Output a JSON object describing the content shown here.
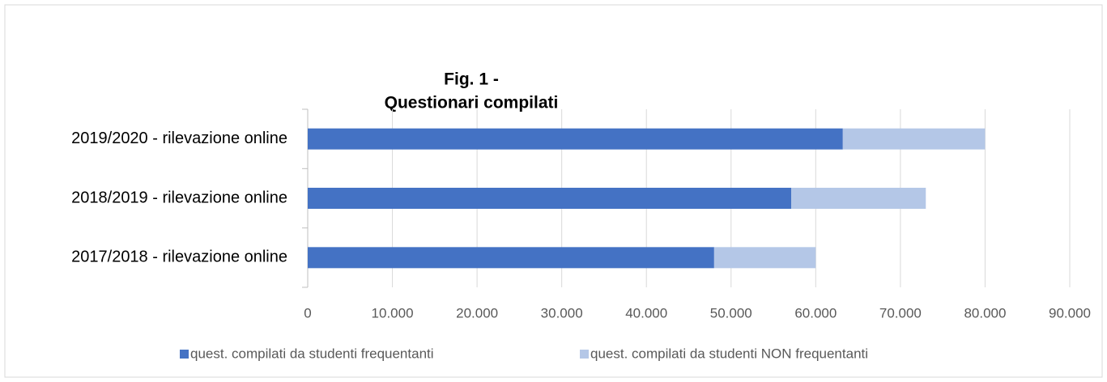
{
  "chart_data": {
    "type": "bar",
    "orientation": "horizontal",
    "stacked": true,
    "title": [
      "Fig. 1 -",
      "Questionari compilati"
    ],
    "categories": [
      "2019/2020 - rilevazione online",
      "2018/2019 - rilevazione online",
      "2017/2018 - rilevazione online"
    ],
    "series": [
      {
        "name": "quest. compilati da studenti frequentanti",
        "color": "#4472c4",
        "values": [
          63200,
          57100,
          48000
        ]
      },
      {
        "name": "quest. compilati da studenti NON frequentanti",
        "color": "#b4c7e7",
        "values": [
          16800,
          15900,
          12000
        ]
      }
    ],
    "xlim": [
      0,
      90000
    ],
    "xticks": [
      0,
      {
        "value": 10000,
        "label": "10.000"
      },
      {
        "value": 20000,
        "label": "20.000"
      },
      {
        "value": 30000,
        "label": "30.000"
      },
      {
        "value": 40000,
        "label": "40.000"
      },
      {
        "value": 50000,
        "label": "50.000"
      },
      {
        "value": 60000,
        "label": "60.000"
      },
      {
        "value": 70000,
        "label": "70.000"
      },
      {
        "value": 80000,
        "label": "80.000"
      },
      {
        "value": 90000,
        "label": "90.000"
      }
    ],
    "grid": true,
    "legend": "bottom"
  }
}
